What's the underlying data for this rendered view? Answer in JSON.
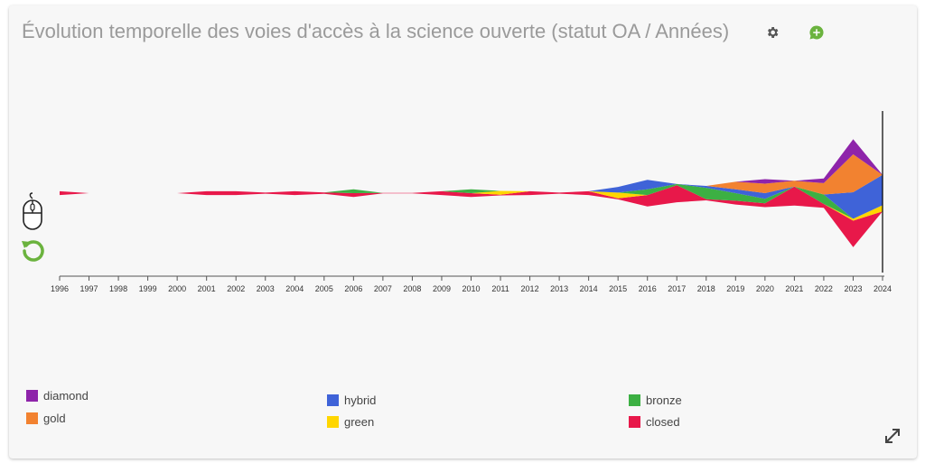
{
  "title": "Évolution temporelle des voies d'accès à la science ouverte (statut OA / Années)",
  "icons": {
    "settings": "gear-icon",
    "add_comment": "chat-plus-icon",
    "mouse": "mouse-scroll-icon",
    "reset": "reset-zoom-icon",
    "expand": "expand-diagonal-icon"
  },
  "colors": {
    "diamond": "#8e24aa",
    "gold": "#f28230",
    "hybrid": "#3f63d8",
    "green": "#ffd600",
    "bronze": "#3cb043",
    "closed": "#e8184a",
    "title": "#9a9a9a",
    "accent_green": "#6bb33e"
  },
  "legend": [
    {
      "key": "diamond",
      "label": "diamond"
    },
    {
      "key": "gold",
      "label": "gold"
    },
    {
      "key": "hybrid",
      "label": "hybrid"
    },
    {
      "key": "green",
      "label": "green"
    },
    {
      "key": "bronze",
      "label": "bronze"
    },
    {
      "key": "closed",
      "label": "closed"
    }
  ],
  "chart_data": {
    "type": "area",
    "stacking": "streamgraph",
    "title": "Évolution temporelle des voies d'accès à la science ouverte (statut OA / Années)",
    "xlabel": "",
    "ylabel": "",
    "grid": false,
    "legend_position": "bottom",
    "x": [
      "1996",
      "1997",
      "1998",
      "1999",
      "2000",
      "2001",
      "2002",
      "2003",
      "2004",
      "2005",
      "2006",
      "2007",
      "2008",
      "2009",
      "2010",
      "2011",
      "2012",
      "2013",
      "2014",
      "2015",
      "2016",
      "2017",
      "2018",
      "2019",
      "2020",
      "2021",
      "2022",
      "2023",
      "2024"
    ],
    "series": [
      {
        "name": "closed",
        "values": [
          1,
          0,
          0,
          0,
          0,
          1,
          1,
          0.3,
          1,
          0.4,
          1,
          0.1,
          0.1,
          1,
          1,
          0.2,
          1,
          0.3,
          1,
          0.3,
          3,
          4.5,
          0.3,
          1,
          1,
          5,
          1,
          7,
          0
        ]
      },
      {
        "name": "green",
        "values": [
          0,
          0,
          0,
          0,
          0,
          0,
          0,
          0,
          0,
          0,
          0,
          0,
          0,
          0,
          0,
          1,
          0,
          0,
          0,
          1.5,
          0,
          0,
          0,
          0,
          0,
          0,
          0,
          0.5,
          1.6
        ]
      },
      {
        "name": "bronze",
        "values": [
          0,
          0,
          0,
          0,
          0,
          0,
          0,
          0,
          0,
          0,
          1,
          0,
          0,
          0,
          1,
          0,
          0,
          0,
          0,
          0,
          1.5,
          0.3,
          3,
          2,
          1.2,
          0,
          2.5,
          0,
          0
        ]
      },
      {
        "name": "hybrid",
        "values": [
          0,
          0,
          0,
          0,
          0,
          0,
          0,
          0,
          0,
          0,
          0,
          0,
          0,
          0,
          0,
          0,
          0,
          0,
          0,
          1.5,
          2.5,
          0,
          0.5,
          1,
          1.5,
          0,
          0,
          7,
          8
        ]
      },
      {
        "name": "gold",
        "values": [
          0,
          0,
          0,
          0,
          0,
          0,
          0,
          0,
          0,
          0,
          0,
          0,
          0,
          0,
          0,
          0,
          0,
          0,
          0,
          0,
          0,
          0,
          0,
          2,
          2.5,
          1.5,
          3,
          10,
          0
        ]
      },
      {
        "name": "diamond",
        "values": [
          0,
          0,
          0,
          0,
          0,
          0,
          0,
          0,
          0,
          0,
          0,
          0,
          0,
          0,
          0,
          0,
          0,
          0,
          0,
          0,
          0,
          0,
          0,
          0,
          1.2,
          0,
          1.2,
          4,
          0
        ]
      }
    ]
  }
}
